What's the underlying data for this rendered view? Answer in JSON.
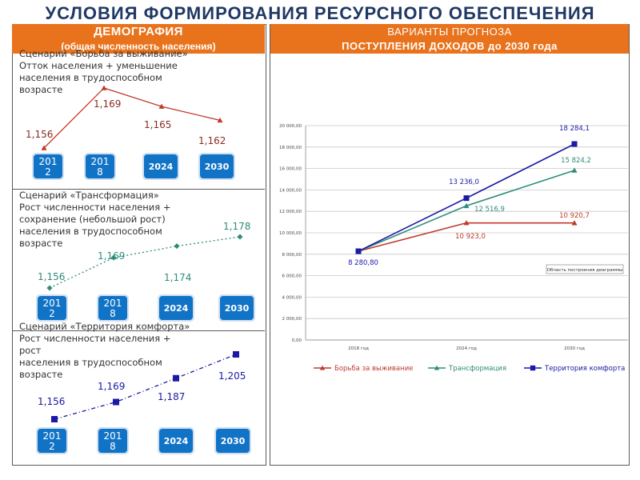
{
  "title": "УСЛОВИЯ ФОРМИРОВАНИЯ РЕСУРСНОГО ОБЕСПЕЧЕНИЯ",
  "left_header": {
    "line1": "ДЕМОГРАФИЯ",
    "line2": "(общая численность населения)"
  },
  "right_header": {
    "line1": "ВАРИАНТЫ ПРОГНОЗА",
    "line2": "ПОСТУПЛЕНИЯ ДОХОДОВ  до 2030 года"
  },
  "colors": {
    "accent": "#e9731c",
    "title": "#1f3864",
    "year_box": "#1173c6",
    "survival": "#c0392b",
    "transform": "#2e8b7a",
    "comfort": "#1a1aa6"
  },
  "scenarios": [
    {
      "lines": [
        "Сценарий «Борьба за выживание»",
        "Отток населения + уменьшение",
        "населения в трудоспособном",
        "возрасте"
      ],
      "years": [
        "201\n2",
        "201\n8",
        "2024",
        "2030"
      ],
      "values": [
        1.156,
        1.169,
        1.165,
        1.162
      ],
      "labels": [
        "1,156",
        "1,169",
        "1,165",
        "1,162"
      ]
    },
    {
      "lines": [
        "Сценарий «Трансформация»",
        "Рост численности населения +",
        "сохранение (небольшой рост)",
        "населения в трудоспособном",
        "возрасте"
      ],
      "years": [
        "201\n2",
        "201\n8",
        "2024",
        "2030"
      ],
      "values": [
        1.156,
        1.169,
        1.174,
        1.178
      ],
      "labels": [
        "1,156",
        "1,169",
        "1,174",
        "1,178"
      ]
    },
    {
      "lines": [
        "Сценарий «Территория комфорта»",
        "Рост численности населения +",
        "рост",
        "населения в трудоспособном",
        "возрасте"
      ],
      "years": [
        "201\n2",
        "201\n8",
        "2024",
        "2030"
      ],
      "values": [
        1.156,
        1.169,
        1.187,
        1.205
      ],
      "labels": [
        "1,156",
        "1,169",
        "1,187",
        "1,205"
      ]
    }
  ],
  "chart_data": {
    "type": "line",
    "x": [
      "2018 год",
      "2024 год",
      "2030 год"
    ],
    "ylim": [
      0,
      20000
    ],
    "yticks": [
      "0,00",
      "2 000,00",
      "4 000,00",
      "6 000,00",
      "8 000,00",
      "10 000,00",
      "12 000,00",
      "14 000,00",
      "16 000,00",
      "18 000,00",
      "20 000,00"
    ],
    "series": [
      {
        "name": "Борьба за выживание",
        "values": [
          8280.8,
          10923.0,
          10920.7
        ],
        "labels": [
          "",
          "10 923,0",
          "10 920,7"
        ]
      },
      {
        "name": "Трансформация",
        "values": [
          8280.8,
          12516.9,
          15824.2
        ],
        "labels": [
          "",
          "12 516,9",
          "15 824,2"
        ]
      },
      {
        "name": "Территория комфорта",
        "values": [
          8280.8,
          13236.0,
          18284.1
        ],
        "labels": [
          "8 280,80",
          "13 236,0",
          "18 284,1"
        ]
      }
    ],
    "annotation": "Область построения диаграммы",
    "legend": "bottom",
    "grid": true
  }
}
